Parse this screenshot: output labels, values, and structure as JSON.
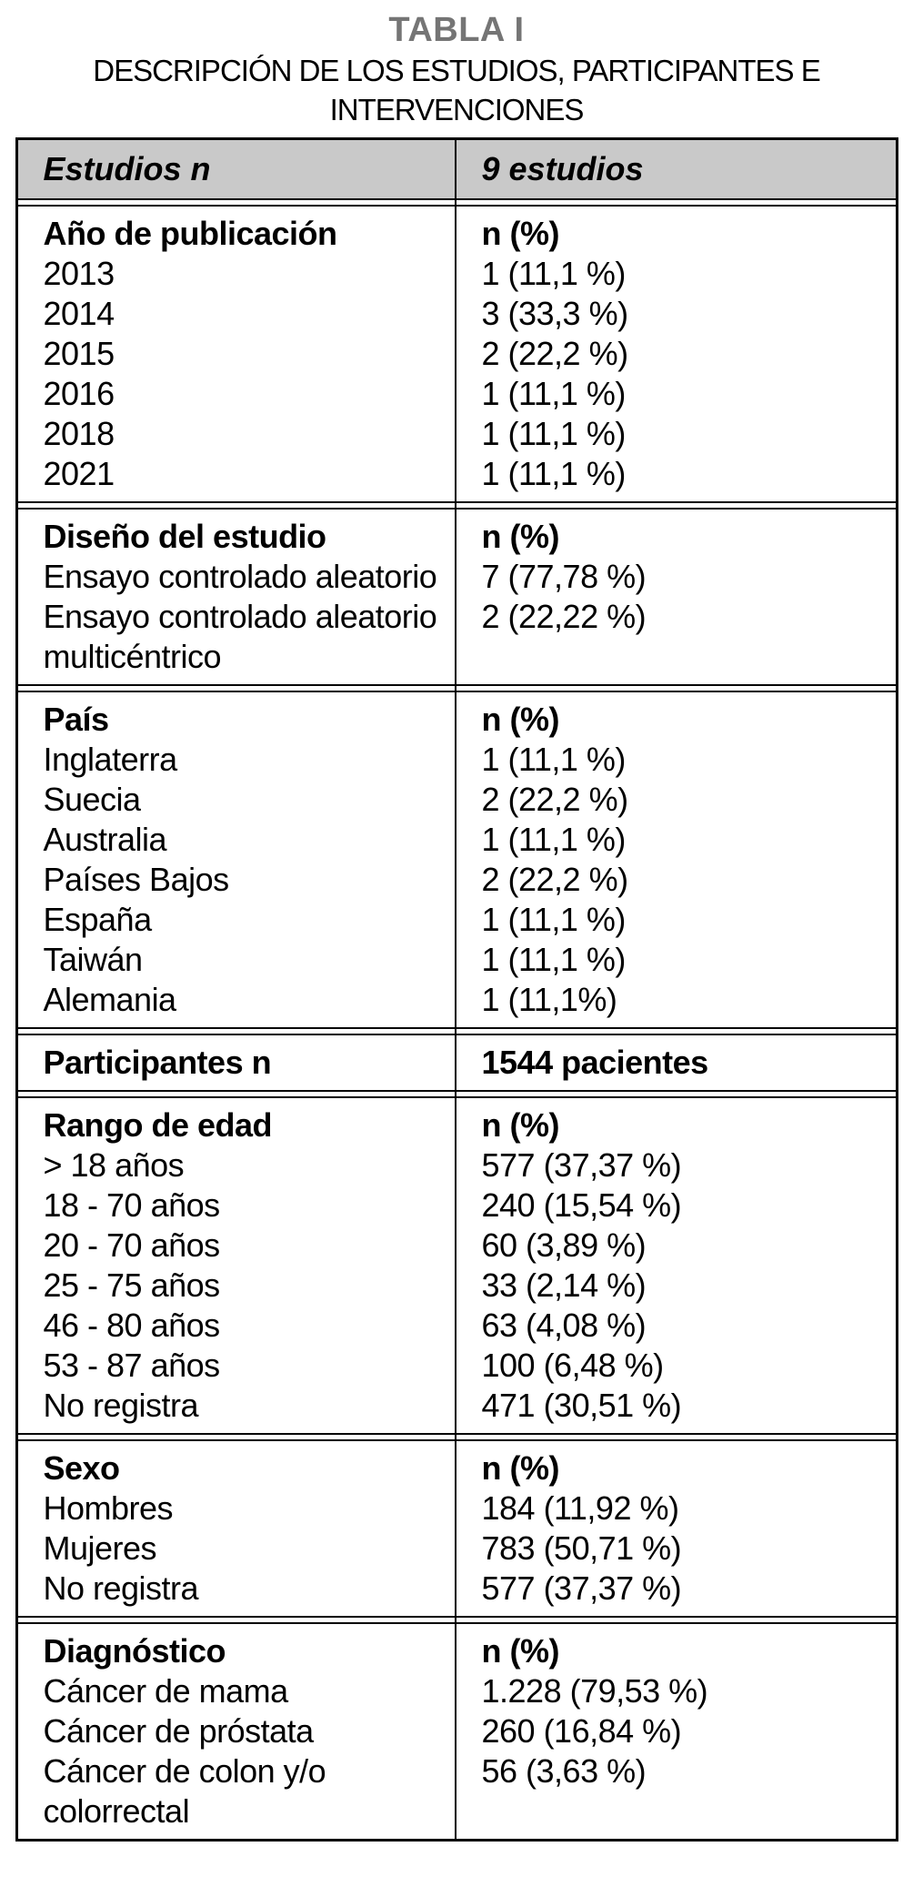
{
  "title": "TABLA I",
  "subtitle": "DESCRIPCIÓN DE LOS ESTUDIOS, PARTICIPANTES E INTERVENCIONES",
  "colors": {
    "header_bg": "#c9c9c9",
    "title_gray": "#757575",
    "border": "#000000"
  },
  "table": {
    "header": {
      "left": "Estudios n",
      "right": "9 estudios"
    },
    "sections": [
      {
        "label": "Año de publicación",
        "value_label": "n (%)",
        "items": [
          "2013",
          "2014",
          "2015",
          "2016",
          "2018",
          "2021"
        ],
        "values": [
          "1 (11,1 %)",
          "3 (33,3 %)",
          "2 (22,2 %)",
          "1 (11,1 %)",
          "1 (11,1 %)",
          "1 (11,1 %)"
        ]
      },
      {
        "label": "Diseño del estudio",
        "value_label": "n (%)",
        "items": [
          "Ensayo controlado aleatorio",
          "Ensayo controlado aleatorio multicéntrico"
        ],
        "values": [
          "7 (77,78 %)",
          "2 (22,22 %)"
        ]
      },
      {
        "label": "País",
        "value_label": "n (%)",
        "items": [
          "Inglaterra",
          "Suecia",
          "Australia",
          "Países Bajos",
          "España",
          "Taiwán",
          "Alemania"
        ],
        "values": [
          "1 (11,1 %)",
          "2 (22,2 %)",
          "1 (11,1 %)",
          "2 (22,2 %)",
          "1 (11,1 %)",
          "1 (11,1 %)",
          "1 (11,1%)"
        ]
      },
      {
        "label": "Participantes n",
        "value_label": "1544 pacientes",
        "items": [],
        "values": []
      },
      {
        "label": "Rango de edad",
        "value_label": "n (%)",
        "items": [
          "> 18 años",
          "18 - 70 años",
          "20 - 70 años",
          "25 - 75 años",
          "46 - 80 años",
          "53 - 87 años",
          "No registra"
        ],
        "values": [
          "577 (37,37 %)",
          "240 (15,54 %)",
          "60 (3,89 %)",
          "33 (2,14 %)",
          "63 (4,08 %)",
          "100 (6,48 %)",
          "471 (30,51 %)"
        ]
      },
      {
        "label": "Sexo",
        "value_label": "n (%)",
        "items": [
          "Hombres",
          "Mujeres",
          "No registra"
        ],
        "values": [
          "184 (11,92 %)",
          "783 (50,71 %)",
          "577 (37,37 %)"
        ]
      },
      {
        "label": "Diagnóstico",
        "value_label": "n (%)",
        "items": [
          "Cáncer de mama",
          "Cáncer de próstata",
          "Cáncer de colon y/o colorrectal"
        ],
        "values": [
          "1.228 (79,53 %)",
          "260 (16,84 %)",
          "56 (3,63 %)"
        ]
      }
    ]
  }
}
